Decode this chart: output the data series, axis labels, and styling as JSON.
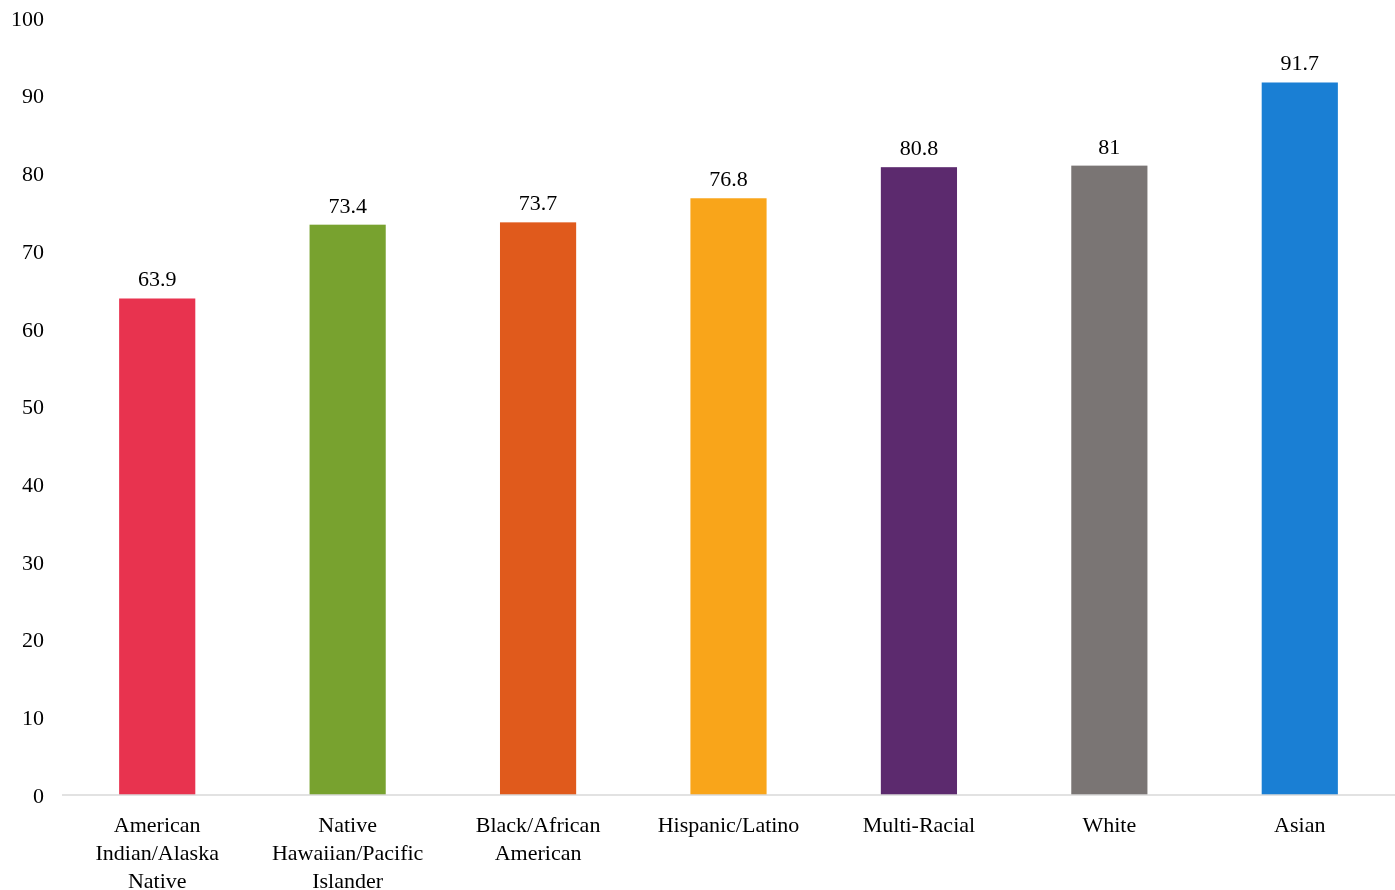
{
  "chart_data": {
    "type": "bar",
    "categories": [
      "American Indian/Alaska Native",
      "Native Hawaiian/Pacific Islander",
      "Black/African American",
      "Hispanic/Latino",
      "Multi-Racial",
      "White",
      "Asian"
    ],
    "values": [
      63.9,
      73.4,
      73.7,
      76.8,
      80.8,
      81,
      91.7
    ],
    "colors": [
      "#e8334f",
      "#78a22f",
      "#e05a1c",
      "#f9a51a",
      "#5c2a6e",
      "#7a7574",
      "#1a7fd4"
    ],
    "ylim": [
      0,
      100
    ],
    "yticks": [
      0,
      10,
      20,
      30,
      40,
      50,
      60,
      70,
      80,
      90,
      100
    ],
    "data_labels": true
  }
}
